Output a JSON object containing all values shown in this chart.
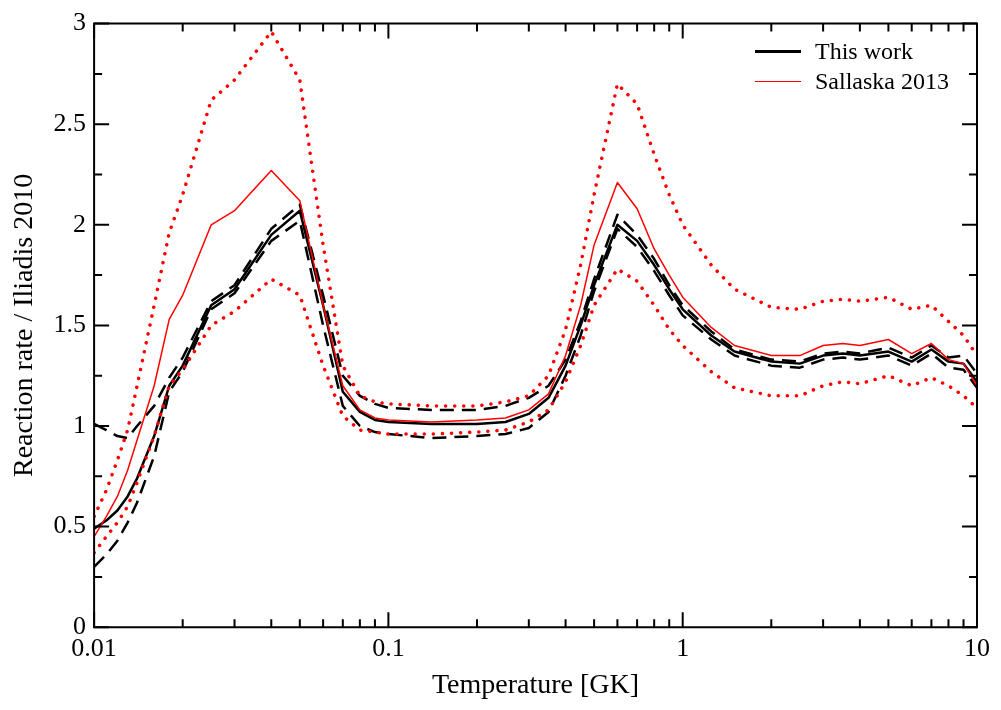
{
  "chart_data": {
    "type": "line",
    "xlabel": "Temperature [GK]",
    "ylabel": "Reaction rate / Iliadis 2010",
    "log": "x",
    "legend": "top right",
    "xlim": [
      0.01,
      10
    ],
    "ylim": [
      0,
      3
    ],
    "xticks": [
      0.01,
      {
        "value": 0.02,
        "label": null
      },
      {
        "value": 0.03,
        "label": null
      },
      {
        "value": 0.04,
        "label": null
      },
      {
        "value": 0.05,
        "label": null
      },
      {
        "value": 0.06,
        "label": null
      },
      {
        "value": 0.07,
        "label": null
      },
      {
        "value": 0.08,
        "label": null
      },
      {
        "value": 0.09,
        "label": null
      },
      0.1,
      {
        "value": 0.2,
        "label": null
      },
      {
        "value": 0.3,
        "label": null
      },
      {
        "value": 0.4,
        "label": null
      },
      {
        "value": 0.5,
        "label": null
      },
      {
        "value": 0.6,
        "label": null
      },
      {
        "value": 0.7,
        "label": null
      },
      {
        "value": 0.8,
        "label": null
      },
      {
        "value": 0.9,
        "label": null
      },
      1,
      {
        "value": 2,
        "label": null
      },
      {
        "value": 3,
        "label": null
      },
      {
        "value": 4,
        "label": null
      },
      {
        "value": 5,
        "label": null
      },
      {
        "value": 6,
        "label": null
      },
      {
        "value": 7,
        "label": null
      },
      {
        "value": 8,
        "label": null
      },
      {
        "value": 9,
        "label": null
      },
      10
    ],
    "yticks": [
      0,
      {
        "value": 0.25,
        "label": null
      },
      0.5,
      {
        "value": 0.75,
        "label": null
      },
      1,
      {
        "value": 1.25,
        "label": null
      },
      1.5,
      {
        "value": 1.75,
        "label": null
      },
      2,
      {
        "value": 2.25,
        "label": null
      },
      2.5,
      {
        "value": 2.75,
        "label": null
      },
      3
    ],
    "x": [
      0.01,
      0.011,
      0.012,
      0.013,
      0.014,
      0.016,
      0.018,
      0.02,
      0.025,
      0.03,
      0.04,
      0.05,
      0.06,
      0.07,
      0.08,
      0.09,
      0.1,
      0.14,
      0.2,
      0.25,
      0.3,
      0.35,
      0.4,
      0.45,
      0.5,
      0.6,
      0.7,
      0.8,
      0.9,
      1,
      1.25,
      1.5,
      2,
      2.5,
      3,
      3.5,
      4,
      5,
      6,
      7,
      8,
      9,
      10
    ],
    "series": [
      {
        "color": "#ff0000",
        "line_style": "dotted",
        "values": [
          0.55,
          0.68,
          0.83,
          0.98,
          1.2,
          1.6,
          1.96,
          2.15,
          2.62,
          2.72,
          2.96,
          2.72,
          1.9,
          1.3,
          1.15,
          1.12,
          1.11,
          1.1,
          1.1,
          1.12,
          1.15,
          1.25,
          1.48,
          1.8,
          2.15,
          2.7,
          2.6,
          2.35,
          2.15,
          2.0,
          1.8,
          1.68,
          1.59,
          1.58,
          1.62,
          1.63,
          1.62,
          1.64,
          1.58,
          1.6,
          1.52,
          1.45,
          1.35
        ]
      },
      {
        "color": "#ff0000",
        "line_style": "dotted",
        "values": [
          0.37,
          0.45,
          0.52,
          0.6,
          0.72,
          0.95,
          1.2,
          1.28,
          1.5,
          1.57,
          1.73,
          1.65,
          1.3,
          1.05,
          0.98,
          0.97,
          0.96,
          0.96,
          0.97,
          0.98,
          1.02,
          1.08,
          1.22,
          1.4,
          1.6,
          1.78,
          1.72,
          1.6,
          1.48,
          1.4,
          1.27,
          1.19,
          1.15,
          1.15,
          1.2,
          1.22,
          1.21,
          1.25,
          1.2,
          1.24,
          1.2,
          1.15,
          1.09
        ]
      },
      {
        "name": "Sallaska 2013",
        "color": "#ff0000",
        "line_style": "solid",
        "values": [
          0.45,
          0.55,
          0.65,
          0.78,
          0.93,
          1.2,
          1.53,
          1.65,
          2.0,
          2.07,
          2.27,
          2.12,
          1.6,
          1.2,
          1.08,
          1.04,
          1.03,
          1.02,
          1.03,
          1.04,
          1.08,
          1.16,
          1.35,
          1.6,
          1.9,
          2.21,
          2.08,
          1.88,
          1.75,
          1.64,
          1.49,
          1.4,
          1.35,
          1.35,
          1.4,
          1.41,
          1.4,
          1.43,
          1.36,
          1.41,
          1.33,
          1.31,
          1.2
        ]
      },
      {
        "color": "#000000",
        "line_style": "dashed",
        "values": [
          1.01,
          0.98,
          0.95,
          0.94,
          1.0,
          1.1,
          1.24,
          1.34,
          1.62,
          1.7,
          1.98,
          2.1,
          1.65,
          1.25,
          1.15,
          1.11,
          1.09,
          1.08,
          1.08,
          1.1,
          1.14,
          1.2,
          1.33,
          1.52,
          1.73,
          2.05,
          1.95,
          1.83,
          1.7,
          1.6,
          1.47,
          1.38,
          1.33,
          1.32,
          1.36,
          1.37,
          1.36,
          1.39,
          1.34,
          1.4,
          1.34,
          1.35,
          1.26
        ]
      },
      {
        "color": "#000000",
        "line_style": "dashed",
        "values": [
          0.3,
          0.36,
          0.43,
          0.52,
          0.62,
          0.85,
          1.17,
          1.27,
          1.58,
          1.66,
          1.92,
          2.02,
          1.5,
          1.1,
          1.0,
          0.97,
          0.96,
          0.94,
          0.95,
          0.96,
          0.99,
          1.07,
          1.25,
          1.45,
          1.67,
          1.98,
          1.89,
          1.77,
          1.65,
          1.55,
          1.43,
          1.35,
          1.3,
          1.29,
          1.33,
          1.34,
          1.33,
          1.35,
          1.3,
          1.36,
          1.29,
          1.28,
          1.19
        ]
      },
      {
        "name": "This work",
        "color": "#000000",
        "line_style": "solid",
        "values": [
          0.49,
          0.53,
          0.58,
          0.65,
          0.74,
          0.95,
          1.2,
          1.3,
          1.6,
          1.68,
          1.95,
          2.07,
          1.6,
          1.17,
          1.07,
          1.03,
          1.02,
          1.01,
          1.01,
          1.02,
          1.06,
          1.14,
          1.3,
          1.5,
          1.7,
          2.0,
          1.92,
          1.8,
          1.68,
          1.58,
          1.45,
          1.37,
          1.32,
          1.31,
          1.35,
          1.36,
          1.35,
          1.37,
          1.32,
          1.38,
          1.32,
          1.31,
          1.22
        ]
      }
    ]
  }
}
